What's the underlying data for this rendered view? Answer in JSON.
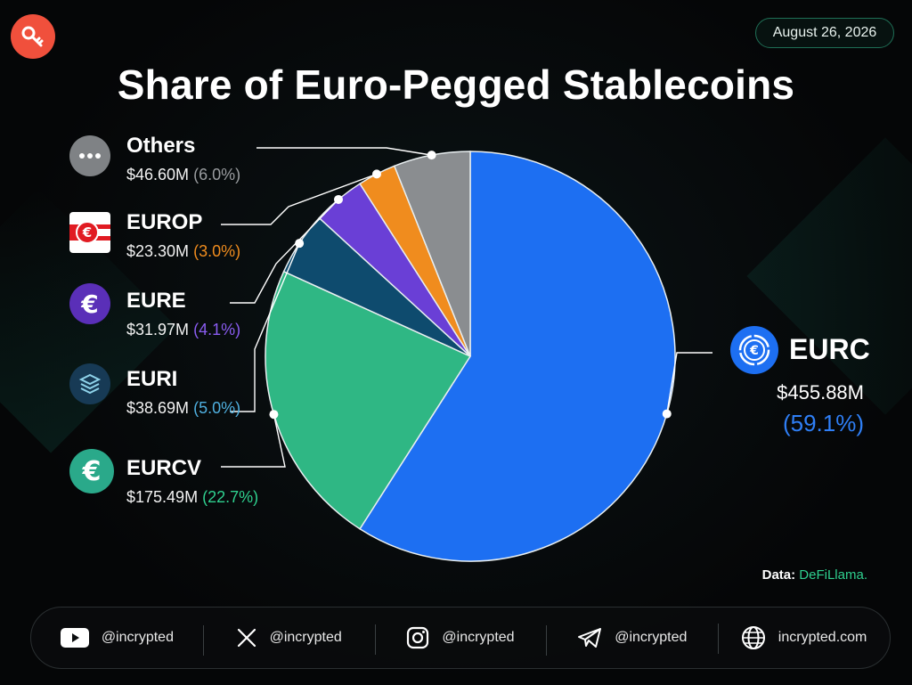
{
  "date": "August 26, 2026",
  "title": "Share of Euro-Pegged Stablecoins",
  "source": {
    "label": "Data:",
    "name": "DeFiLlama."
  },
  "colors": {
    "EURC": "#1d6ff2",
    "EURCV": "#2fb784",
    "EURI": "#0e4b6e",
    "EURE": "#6a3fd6",
    "EUROP": "#f08c1e",
    "Others": "#8a8d90"
  },
  "chart_data": {
    "type": "pie",
    "title": "Share of Euro-Pegged Stablecoins",
    "slices": [
      {
        "name": "EURC",
        "value_label": "$455.88M",
        "pct_label": "(59.1%)",
        "value": 455.88,
        "pct": 59.1,
        "icon": "euro-circle-icon"
      },
      {
        "name": "EURCV",
        "value_label": "$175.49M",
        "pct_label": "(22.7%)",
        "value": 175.49,
        "pct": 22.7,
        "icon": "euro-coin-icon"
      },
      {
        "name": "EURI",
        "value_label": "$38.69M",
        "pct_label": "(5.0%)",
        "value": 38.69,
        "pct": 5.0,
        "icon": "layers-icon"
      },
      {
        "name": "EURE",
        "value_label": "$31.97M",
        "pct_label": "(4.1%)",
        "value": 31.97,
        "pct": 4.1,
        "icon": "euro-coin-icon"
      },
      {
        "name": "EUROP",
        "value_label": "$23.30M",
        "pct_label": "(3.0%)",
        "value": 23.3,
        "pct": 3.0,
        "icon": "euro-flag-icon"
      },
      {
        "name": "Others",
        "value_label": "$46.60M",
        "pct_label": "(6.0%)",
        "value": 46.6,
        "pct": 6.0,
        "icon": "ellipsis-icon"
      }
    ]
  },
  "footer": [
    {
      "icon": "youtube-icon",
      "handle": "@incrypted"
    },
    {
      "icon": "x-icon",
      "handle": "@incrypted"
    },
    {
      "icon": "instagram-icon",
      "handle": "@incrypted"
    },
    {
      "icon": "telegram-icon",
      "handle": "@incrypted"
    },
    {
      "icon": "globe-icon",
      "handle": "incrypted.com"
    }
  ]
}
